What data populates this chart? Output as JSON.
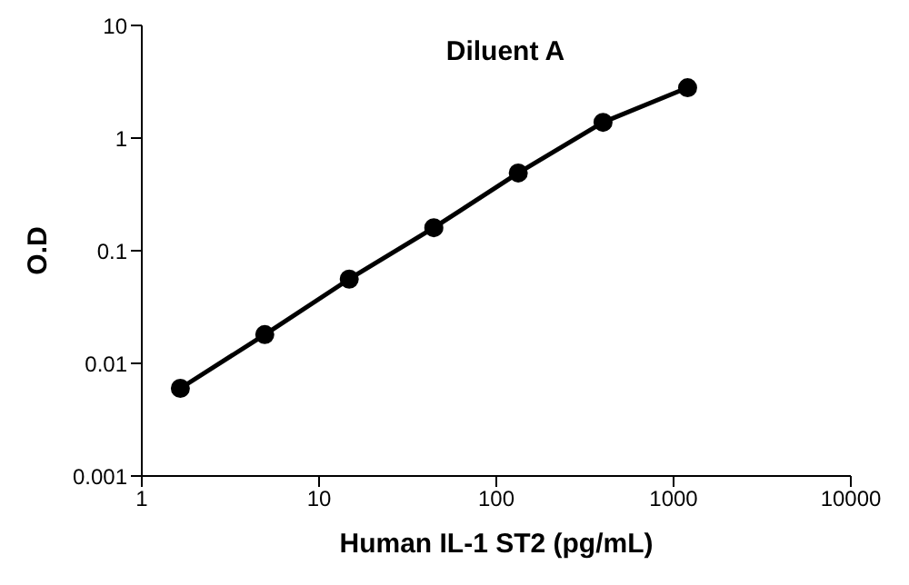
{
  "chart_data": {
    "type": "line",
    "title": "Diluent A",
    "xlabel": "Human IL-1 ST2 (pg/mL)",
    "ylabel": "O.D",
    "x": [
      1.65,
      4.94,
      14.8,
      44.4,
      133,
      400,
      1200
    ],
    "series": [
      {
        "color": "#000000",
        "values": [
          0.006,
          0.018,
          0.056,
          0.16,
          0.49,
          1.38,
          2.8
        ]
      }
    ],
    "log": "xy",
    "xlim": [
      1,
      10000
    ],
    "ylim": [
      0.001,
      10
    ],
    "xticks": [
      1,
      10,
      100,
      1000,
      10000
    ],
    "yticks": [
      0.001,
      0.01,
      0.1,
      1,
      10
    ],
    "marker": "circle",
    "line_style": "solid"
  }
}
